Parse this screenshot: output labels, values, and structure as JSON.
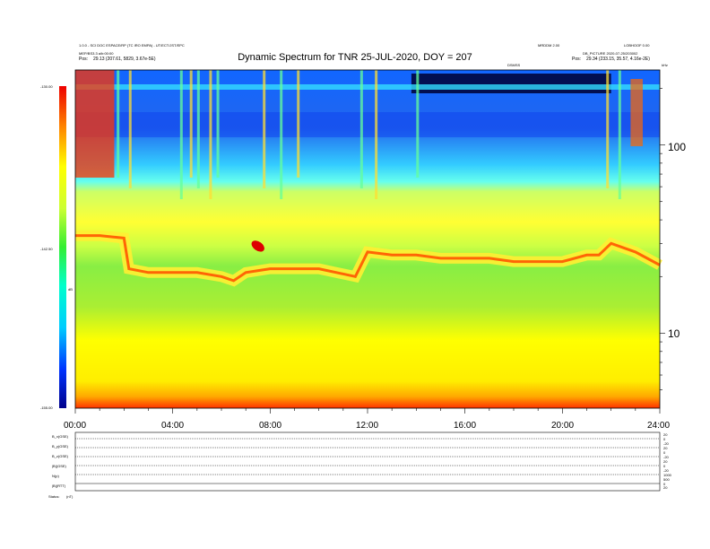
{
  "chart_data": {
    "type": "heatmap",
    "title": "Dynamic Spectrum for TNR 25-JUL-2020, DOY = 207",
    "header": {
      "left_line1": "1.0.0 - SCI DOC ESPACE/RP (TC IRO EMPA) - UT/ECT/JST/EPC",
      "left_line2": "MEP/BS3.3 a/b:00:00",
      "left_line3_label": "Pos:",
      "left_line3_value": "29.13 (207.61, 5829, 3.67e-5E)",
      "right_line1": "MRDDM 2.00",
      "right_line1b": "LOBHOOF 0.00",
      "right_line2": "DB_PICTURE 2020-07-25/203002",
      "right_line3_label": "Pos:",
      "right_line3_value": "29.34 (233.15, 35.57, 4.16e-2E)",
      "center_small": "DSMSS",
      "right_small": "kHz"
    },
    "colorbar": {
      "max_label": "-130.00",
      "mid_label": "-142.50",
      "min_label": "-155.00",
      "unit": "dB",
      "range": [
        -155,
        -130
      ]
    },
    "xaxis": {
      "ticks": [
        "00:00",
        "04:00",
        "08:00",
        "12:00",
        "16:00",
        "20:00",
        "24:00"
      ],
      "range_hours": [
        0,
        24
      ]
    },
    "yaxis_right": {
      "scale": "log",
      "ticks": [
        "100",
        "10"
      ],
      "unit": "kHz",
      "range": [
        4,
        250
      ]
    },
    "emission_lines": {
      "description_hours": [
        0,
        1,
        2,
        2.2,
        3,
        5,
        6,
        6.5,
        7,
        8,
        10,
        11.5,
        12,
        13,
        14,
        15,
        17,
        18,
        19,
        20,
        21,
        21.5,
        22,
        23,
        24
      ],
      "upper_band_khz": [
        33,
        33,
        32,
        22,
        21,
        21,
        20,
        19,
        21,
        22,
        22,
        20,
        27,
        26,
        26,
        25,
        25,
        24,
        24,
        24,
        26,
        26,
        30,
        27,
        23
      ]
    },
    "lower_panels": {
      "labels": [
        "B_x(GSE)",
        "B_y(GSE)",
        "B_z(GSE)",
        "|B|(GSE)",
        "N(p)",
        "|B|(RTT)"
      ],
      "footer_label": "Status:",
      "footer_value": "(nT)",
      "right_scale": [
        "20",
        "0",
        "-20",
        "20",
        "0",
        "-20",
        "20",
        "0",
        "-20",
        "1000",
        "500",
        "0",
        "20",
        "10",
        "0"
      ]
    }
  }
}
